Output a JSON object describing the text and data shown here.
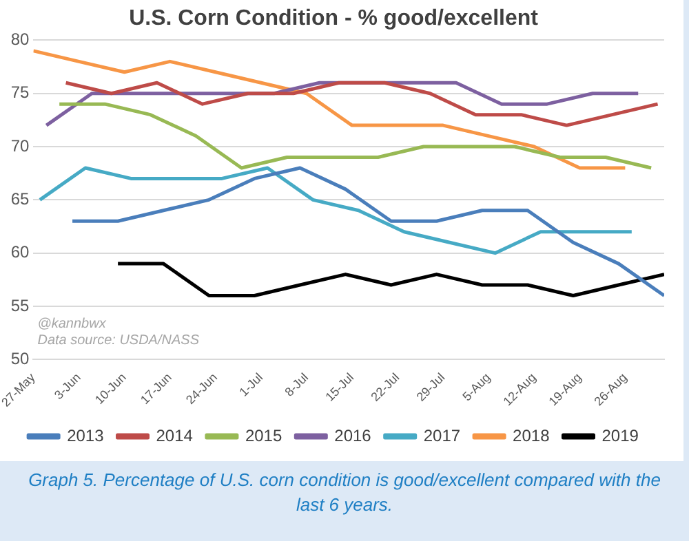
{
  "chart_data": {
    "type": "line",
    "title": "U.S. Corn Condition - % good/excellent",
    "annotations": [
      "@kannbwx",
      "Data source: USDA/NASS",
      "Graph 5. Percentage of U.S. corn condition is good/excellent compared with the last 6 years."
    ],
    "xlim": [
      "--05-27",
      "--09-01"
    ],
    "xticks": [
      {
        "value": "--05-27",
        "label": "27-May"
      },
      {
        "value": "--06-03",
        "label": "3-Jun"
      },
      {
        "value": "--06-10",
        "label": "10-Jun"
      },
      {
        "value": "--06-17",
        "label": "17-Jun"
      },
      {
        "value": "--06-24",
        "label": "24-Jun"
      },
      {
        "value": "--07-01",
        "label": "1-Jul"
      },
      {
        "value": "--07-08",
        "label": "8-Jul"
      },
      {
        "value": "--07-15",
        "label": "15-Jul"
      },
      {
        "value": "--07-22",
        "label": "22-Jul"
      },
      {
        "value": "--07-29",
        "label": "29-Jul"
      },
      {
        "value": "--08-05",
        "label": "5-Aug"
      },
      {
        "value": "--08-12",
        "label": "12-Aug"
      },
      {
        "value": "--08-19",
        "label": "19-Aug"
      },
      {
        "value": "--08-26",
        "label": "26-Aug"
      }
    ],
    "ylim": [
      50,
      80
    ],
    "yticks": [
      50,
      55,
      60,
      65,
      70,
      75,
      80
    ],
    "grid": "y",
    "legend": "bottom",
    "marker": "none",
    "line_style": "solid",
    "series": [
      {
        "name": "2013",
        "color": "#4a7ebb",
        "x": [
          "--06-02",
          "--06-09",
          "--06-16",
          "--06-23",
          "--06-30",
          "--07-07",
          "--07-14",
          "--07-21",
          "--07-28",
          "--08-04",
          "--08-11",
          "--08-18",
          "--08-25",
          "--09-01"
        ],
        "values": [
          63,
          63,
          64,
          65,
          67,
          68,
          66,
          63,
          63,
          64,
          64,
          61,
          59,
          56
        ]
      },
      {
        "name": "2014",
        "color": "#be4b48",
        "x": [
          "--06-01",
          "--06-08",
          "--06-15",
          "--06-22",
          "--06-29",
          "--07-06",
          "--07-13",
          "--07-20",
          "--07-27",
          "--08-03",
          "--08-10",
          "--08-17",
          "--08-24",
          "--08-31"
        ],
        "values": [
          76,
          75,
          76,
          74,
          75,
          75,
          76,
          76,
          75,
          73,
          73,
          72,
          73,
          74
        ]
      },
      {
        "name": "2015",
        "color": "#98b954",
        "x": [
          "--05-31",
          "--06-07",
          "--06-14",
          "--06-21",
          "--06-28",
          "--07-05",
          "--07-12",
          "--07-19",
          "--07-26",
          "--08-02",
          "--08-09",
          "--08-16",
          "--08-23",
          "--08-30"
        ],
        "values": [
          74,
          74,
          73,
          71,
          68,
          69,
          69,
          69,
          70,
          70,
          70,
          69,
          69,
          68
        ]
      },
      {
        "name": "2016",
        "color": "#7d60a0",
        "x": [
          "--05-29",
          "--06-05",
          "--06-12",
          "--06-19",
          "--06-26",
          "--07-03",
          "--07-10",
          "--07-17",
          "--07-24",
          "--07-31",
          "--08-07",
          "--08-14",
          "--08-21",
          "--08-28"
        ],
        "values": [
          72,
          75,
          75,
          75,
          75,
          75,
          76,
          76,
          76,
          76,
          74,
          74,
          75,
          75
        ]
      },
      {
        "name": "2017",
        "color": "#46aac5",
        "x": [
          "--05-28",
          "--06-04",
          "--06-11",
          "--06-18",
          "--06-25",
          "--07-02",
          "--07-09",
          "--07-16",
          "--07-23",
          "--07-30",
          "--08-06",
          "--08-13",
          "--08-20",
          "--08-27"
        ],
        "values": [
          65,
          68,
          67,
          67,
          67,
          68,
          65,
          64,
          62,
          61,
          60,
          62,
          62,
          62
        ]
      },
      {
        "name": "2018",
        "color": "#f79646",
        "x": [
          "--05-27",
          "--06-03",
          "--06-10",
          "--06-17",
          "--06-24",
          "--07-01",
          "--07-08",
          "--07-15",
          "--07-22",
          "--07-29",
          "--08-05",
          "--08-12",
          "--08-19",
          "--08-26"
        ],
        "values": [
          79,
          78,
          77,
          78,
          77,
          76,
          75,
          72,
          72,
          72,
          71,
          70,
          68,
          68
        ]
      },
      {
        "name": "2019",
        "color": "#000000",
        "x": [
          "--06-09",
          "--06-16",
          "--06-23",
          "--06-30",
          "--07-07",
          "--07-14",
          "--07-21",
          "--07-28",
          "--08-04",
          "--08-11",
          "--08-18",
          "--08-25",
          "--09-01"
        ],
        "values": [
          59,
          59,
          56,
          56,
          57,
          58,
          57,
          58,
          57,
          57,
          56,
          57,
          58
        ]
      }
    ]
  }
}
